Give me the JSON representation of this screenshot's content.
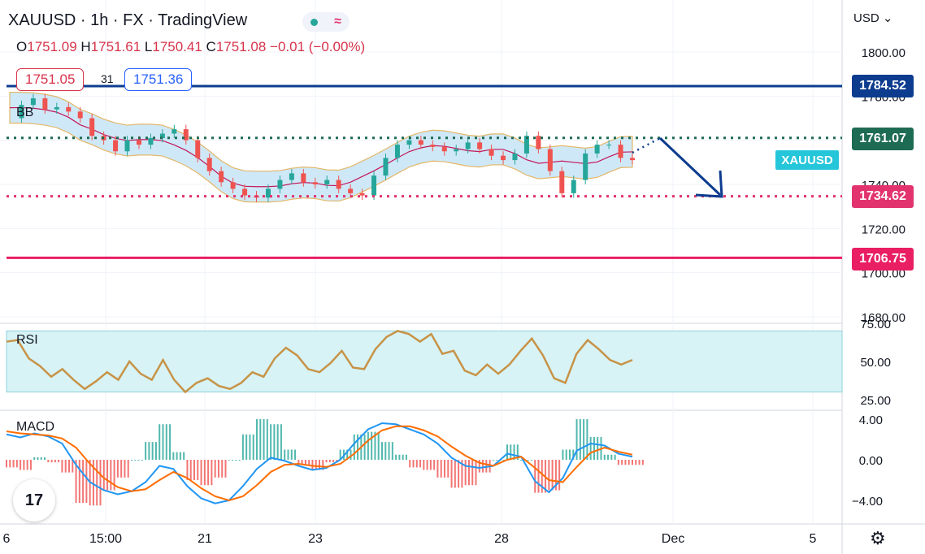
{
  "header": {
    "title": "XAUUSD · 1h · FX · TradingView",
    "ohlc_prefix": [
      "O",
      "H",
      "L",
      "C"
    ],
    "open": "1751.09",
    "high": "1751.61",
    "low": "1750.41",
    "close": "1751.08",
    "change": "−0.01 (−0.00%)",
    "bid": "1751.05",
    "spread": "31",
    "ask": "1751.36",
    "currency": "USD"
  },
  "labels": {
    "bb": "BB",
    "rsi": "RSI",
    "macd": "MACD",
    "symbol_tag": "XAUUSD"
  },
  "colors": {
    "blue_level": "#0d3c8f",
    "green_level": "#1e6b53",
    "pink_level": "#e2336e",
    "red_level": "#e91e63",
    "symbol_tag": "#26c6da",
    "bb_fill": "#cfe8f7",
    "rsi_fill": "#d7f3f6",
    "price_line": "#c79347",
    "macd_line": "#2196f3",
    "signal_line": "#ff6d00"
  },
  "chart_data": [
    {
      "type": "line",
      "title": "",
      "xlabel": "",
      "ylabel": "",
      "ylim": [
        1680,
        1810
      ],
      "x_ticks": [
        "6",
        "15:00",
        "21",
        "23",
        "28",
        "Dec",
        "5"
      ],
      "y_ticks": [
        "1800.00",
        "1780.00",
        "1760.00",
        "1740.00",
        "1720.00",
        "1700.00",
        "1680.00"
      ],
      "levels": [
        {
          "label": "1784.52",
          "value": 1784.52
        },
        {
          "label": "1761.07",
          "value": 1761.07
        },
        {
          "label": "1734.62",
          "value": 1734.62
        },
        {
          "label": "1706.75",
          "value": 1706.75
        }
      ],
      "series": [
        {
          "values": [
            1770,
            1776,
            1779,
            1774,
            1775,
            1773,
            1770,
            1762,
            1760,
            1755,
            1760,
            1758,
            1761,
            1763,
            1765,
            1760,
            1752,
            1746,
            1741,
            1738,
            1735,
            1734,
            1738,
            1742,
            1745,
            1741,
            1740,
            1742,
            1738,
            1736,
            1735,
            1744,
            1752,
            1758,
            1760,
            1758,
            1757,
            1755,
            1756,
            1759,
            1756,
            1753,
            1751,
            1754,
            1762,
            1756,
            1746,
            1736,
            1742,
            1754,
            1758,
            1758,
            1752,
            1751
          ]
        }
      ]
    },
    {
      "type": "line",
      "title": "",
      "ylim": [
        20,
        80
      ],
      "y_ticks": [
        "75.00",
        "50.00",
        "25.00"
      ],
      "series": [
        {
          "values": [
            63,
            64,
            52,
            47,
            40,
            45,
            38,
            32,
            37,
            43,
            38,
            50,
            42,
            38,
            51,
            38,
            30,
            36,
            39,
            34,
            32,
            36,
            43,
            40,
            52,
            59,
            54,
            45,
            43,
            49,
            57,
            46,
            45,
            58,
            66,
            70,
            68,
            63,
            68,
            55,
            57,
            44,
            41,
            48,
            42,
            48,
            57,
            65,
            54,
            39,
            36,
            55,
            64,
            58,
            51,
            48,
            51
          ]
        }
      ]
    },
    {
      "type": "bar",
      "title": "",
      "ylim": [
        -5,
        5
      ],
      "y_ticks": [
        "4.00",
        "0.00",
        "-4.00"
      ],
      "series": [
        {
          "name": "MACD",
          "values": [
            2.5,
            2.2,
            2.6,
            2.3,
            1.6,
            -0.5,
            -2.2,
            -3.0,
            -3.4,
            -3.1,
            -2.2,
            -0.6,
            -0.9,
            -2.6,
            -3.8,
            -4.3,
            -4.0,
            -2.6,
            -0.9,
            0.2,
            -0.1,
            -0.6,
            -1.0,
            -0.8,
            0.0,
            1.6,
            3.0,
            3.6,
            3.5,
            3.0,
            2.5,
            1.6,
            0.2,
            -0.6,
            -0.8,
            -0.6,
            0.6,
            0.3,
            -2.1,
            -3.2,
            -1.8,
            0.9,
            1.6,
            1.4,
            0.6,
            0.3
          ]
        },
        {
          "name": "Signal",
          "values": [
            2.8,
            2.6,
            2.5,
            2.4,
            2.1,
            1.2,
            -0.4,
            -1.8,
            -2.7,
            -3.1,
            -2.9,
            -2.0,
            -1.2,
            -1.8,
            -2.8,
            -3.6,
            -4.0,
            -3.6,
            -2.5,
            -1.2,
            -0.5,
            -0.4,
            -0.6,
            -0.7,
            -0.4,
            0.6,
            1.9,
            2.9,
            3.3,
            3.3,
            2.9,
            2.3,
            1.3,
            0.4,
            -0.3,
            -0.6,
            0.0,
            0.3,
            -0.8,
            -2.0,
            -2.2,
            -0.7,
            0.7,
            1.2,
            0.8,
            0.5
          ]
        }
      ]
    }
  ]
}
